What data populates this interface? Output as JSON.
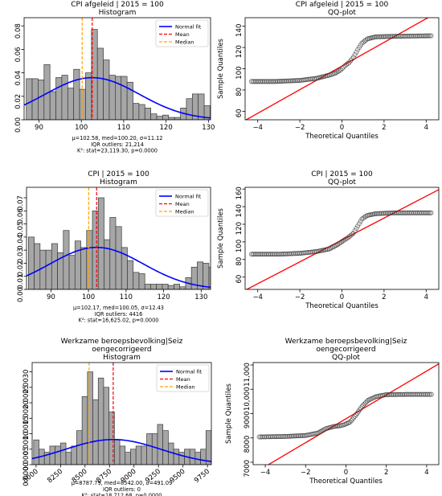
{
  "chart_data": [
    {
      "type": "histogram",
      "title_lines": [
        "CPI afgeleid | 2015 = 100",
        "Histogram"
      ],
      "xlim": [
        86.5,
        130.5
      ],
      "ylim": [
        0,
        0.087
      ],
      "xticks": [
        90,
        100,
        110,
        120,
        130
      ],
      "yticks": [
        0.0,
        0.02,
        0.04,
        0.06,
        0.08
      ],
      "yticks_labels": [
        "0.00",
        "0.02",
        "0.04",
        "0.06",
        "0.08"
      ],
      "bin_start": 87.0,
      "bin_width": 1.4,
      "values": [
        0.035,
        0.035,
        0.034,
        0.047,
        0.024,
        0.036,
        0.038,
        0.027,
        0.043,
        0.026,
        0.04,
        0.077,
        0.061,
        0.051,
        0.038,
        0.037,
        0.037,
        0.032,
        0.014,
        0.013,
        0.01,
        0.005,
        0.003,
        0.004,
        0.002,
        0.002,
        0.01,
        0.018,
        0.022,
        0.022,
        0.012
      ],
      "normal_fit": {
        "mu": 102.58,
        "sigma": 11.12
      },
      "mean": 102.58,
      "median": 100.2,
      "stats_lines": [
        "μ=102.58, med=100.20, σ=11.12",
        "IQR outliers: 21,214",
        "K²: stat=23,119.30, p=0.0000"
      ],
      "legend": [
        "Normal fit",
        "Mean",
        "Median"
      ]
    },
    {
      "type": "qq",
      "title_lines": [
        "CPI afgeleid | 2015 = 100",
        "QQ-plot"
      ],
      "xlabel": "Theoretical Quantiles",
      "ylabel": "Sample Quantiles",
      "xlim": [
        -4.6,
        4.6
      ],
      "ylim": [
        52,
        148
      ],
      "xticks": [
        -4,
        -2,
        0,
        2,
        4
      ],
      "yticks": [
        60,
        80,
        100,
        120,
        140
      ],
      "yticks_labels": [
        "60",
        "80",
        "100",
        "120",
        "140"
      ],
      "curve": [
        [
          -4.3,
          88
        ],
        [
          -3.2,
          88
        ],
        [
          -2.0,
          89
        ],
        [
          -1.2,
          91
        ],
        [
          -0.6,
          94
        ],
        [
          -0.3,
          96
        ],
        [
          -0.05,
          99
        ],
        [
          0.15,
          103
        ],
        [
          0.35,
          106
        ],
        [
          0.55,
          111
        ],
        [
          0.75,
          118
        ],
        [
          0.95,
          124
        ],
        [
          1.2,
          128
        ],
        [
          1.6,
          130
        ],
        [
          2.5,
          130.5
        ],
        [
          4.3,
          131
        ]
      ],
      "ref_line": {
        "intercept": 102.58,
        "slope": 11.12
      }
    },
    {
      "type": "histogram",
      "title_lines": [
        "CPI | 2015 = 100",
        "Histogram"
      ],
      "xlim": [
        83.5,
        132.5
      ],
      "ylim": [
        0,
        0.078
      ],
      "xticks": [
        90,
        100,
        110,
        120,
        130
      ],
      "yticks": [
        0.0,
        0.01,
        0.02,
        0.03,
        0.04,
        0.05,
        0.06,
        0.07
      ],
      "yticks_labels": [
        "0.00",
        "0.01",
        "0.02",
        "0.03",
        "0.04",
        "0.05",
        "0.06",
        "0.07"
      ],
      "bin_start": 84.0,
      "bin_width": 1.55,
      "values": [
        0.04,
        0.035,
        0.03,
        0.03,
        0.035,
        0.028,
        0.045,
        0.026,
        0.037,
        0.032,
        0.045,
        0.06,
        0.07,
        0.038,
        0.055,
        0.048,
        0.032,
        0.022,
        0.013,
        0.012,
        0.004,
        0.004,
        0.004,
        0.004,
        0.003,
        0.004,
        0.002,
        0.009,
        0.017,
        0.021,
        0.02,
        0.017,
        0.006
      ],
      "normal_fit": {
        "mu": 102.17,
        "sigma": 12.43
      },
      "mean": 102.17,
      "median": 100.05,
      "stats_lines": [
        "μ=102.17, med=100.05, σ=12.43",
        "IQR outliers: 4416",
        "K²: stat=16,625.02, p=0.0000"
      ],
      "legend": [
        "Normal fit",
        "Mean",
        "Median"
      ]
    },
    {
      "type": "qq",
      "title_lines": [
        "CPI | 2015 = 100",
        "QQ-plot"
      ],
      "xlabel": "Theoretical Quantiles",
      "ylabel": "Sample Quantiles",
      "xlim": [
        -4.6,
        4.6
      ],
      "ylim": [
        46,
        162
      ],
      "xticks": [
        -4,
        -2,
        0,
        2,
        4
      ],
      "yticks": [
        60,
        80,
        100,
        120,
        140,
        160
      ],
      "yticks_labels": [
        "60",
        "80",
        "100",
        "120",
        "140",
        "160"
      ],
      "curve": [
        [
          -4.3,
          86
        ],
        [
          -3.0,
          86
        ],
        [
          -2.0,
          87
        ],
        [
          -1.2,
          89
        ],
        [
          -0.6,
          92
        ],
        [
          -0.2,
          97
        ],
        [
          0.1,
          102
        ],
        [
          0.3,
          105
        ],
        [
          0.55,
          110
        ],
        [
          0.75,
          118
        ],
        [
          0.95,
          126
        ],
        [
          1.2,
          130
        ],
        [
          1.6,
          132
        ],
        [
          2.5,
          133
        ],
        [
          4.3,
          133
        ]
      ],
      "ref_line": {
        "intercept": 102.17,
        "slope": 12.43
      }
    },
    {
      "type": "histogram",
      "title_lines": [
        "Werkzame beroepsbevolking|Seiz",
        "oengecorrigeerd",
        "Histogram"
      ],
      "xlim": [
        7960,
        9790
      ],
      "ylim": [
        0,
        0.0033
      ],
      "xticks": [
        8000,
        8250,
        8500,
        8750,
        9000,
        9250,
        9500,
        9750
      ],
      "yticks": [
        0.0,
        0.0005,
        0.001,
        0.0015,
        0.002,
        0.0025,
        0.003
      ],
      "yticks_labels": [
        "0.0000",
        "0.0005",
        "0.0010",
        "0.0015",
        "0.0020",
        "0.0025",
        "0.0030"
      ],
      "bin_start": 7975,
      "bin_width": 55,
      "values": [
        0.0008,
        0.0005,
        0.0004,
        0.0006,
        0.0006,
        0.0007,
        0.0004,
        0.0006,
        0.0011,
        0.0022,
        0.003,
        0.0021,
        0.0028,
        0.0025,
        0.0017,
        0.0008,
        0.0006,
        0.0004,
        0.0005,
        0.0006,
        0.0006,
        0.001,
        0.001,
        0.0013,
        0.0011,
        0.0007,
        0.0005,
        0.0004,
        0.0005,
        0.0005,
        0.0004,
        0.0005,
        0.0011
      ],
      "normal_fit": {
        "mu": 8787.79,
        "sigma": 491.09
      },
      "mean": 8787.79,
      "median": 8542.0,
      "stats_lines": [
        "μ=8787.79, med=8542.00, σ=491.09",
        "IQR outliers: 0",
        "K²: stat=18,712.68, p=0.0000"
      ],
      "legend": [
        "Normal fit",
        "Mean",
        "Median"
      ]
    },
    {
      "type": "qq",
      "title_lines": [
        "Werkzame beroepsbevolking|Seiz",
        "oengecorrigeerd",
        "QQ-plot"
      ],
      "xlabel": "Theoretical Quantiles",
      "ylabel": "Sample Quantiles",
      "xlim": [
        -4.6,
        4.6
      ],
      "ylim": [
        6900,
        11100
      ],
      "xticks": [
        -4,
        -2,
        0,
        2,
        4
      ],
      "yticks": [
        7000,
        8000,
        9000,
        10000,
        11000
      ],
      "yticks_labels": [
        "7000",
        "8000",
        "9000",
        "10,000",
        "11,000"
      ],
      "curve": [
        [
          -4.3,
          8040
        ],
        [
          -3.0,
          8060
        ],
        [
          -2.0,
          8100
        ],
        [
          -1.4,
          8200
        ],
        [
          -1.0,
          8380
        ],
        [
          -0.6,
          8470
        ],
        [
          -0.3,
          8500
        ],
        [
          -0.1,
          8540
        ],
        [
          0.2,
          8650
        ],
        [
          0.5,
          8950
        ],
        [
          0.8,
          9300
        ],
        [
          1.1,
          9550
        ],
        [
          1.5,
          9700
        ],
        [
          2.0,
          9780
        ],
        [
          3.0,
          9790
        ],
        [
          4.3,
          9790
        ]
      ],
      "ref_line": {
        "intercept": 8787.79,
        "slope": 491.09
      }
    }
  ],
  "colors": {
    "bar_fill": "#a6a6a6",
    "bar_edge": "#3a3a3a",
    "normal_fit": "#0000ff",
    "mean": "#ff0000",
    "median": "#ffa500",
    "qq_line": "#ff0000",
    "qq_marker": "#3a3a3a"
  }
}
